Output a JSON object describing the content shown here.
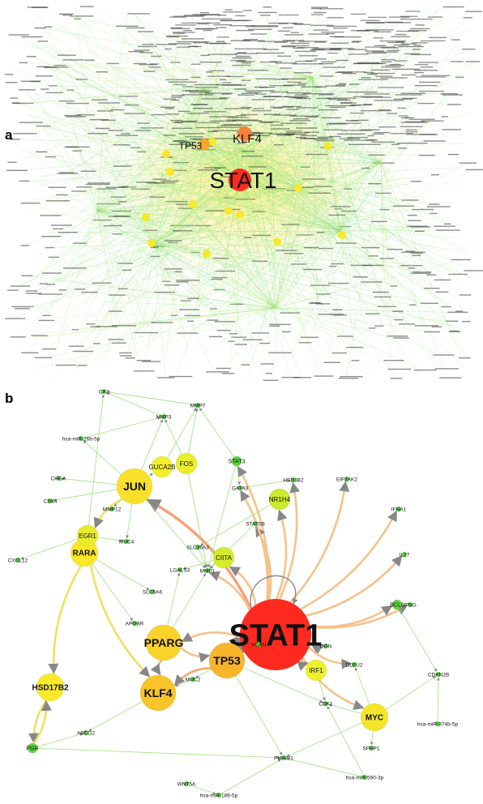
{
  "panel_a": {
    "label": "a",
    "hub_labels": [
      "STAT1",
      "KLF4",
      "TP53"
    ]
  },
  "panel_b": {
    "label": "b",
    "nodes": [
      {
        "id": "STAT1",
        "label": "STAT1",
        "size": "hub",
        "color": "#ff2a1f"
      },
      {
        "id": "TP53",
        "label": "TP53",
        "size": "large",
        "color": "#f7b52c"
      },
      {
        "id": "KLF4",
        "label": "KLF4",
        "size": "large",
        "color": "#f7c42a"
      },
      {
        "id": "PPARG",
        "label": "PPARG",
        "size": "large",
        "color": "#f9d22a"
      },
      {
        "id": "JUN",
        "label": "JUN",
        "size": "large",
        "color": "#f9e02a"
      },
      {
        "id": "RARA",
        "label": "RARA",
        "size": "medium",
        "color": "#fbe629"
      },
      {
        "id": "MYC",
        "label": "MYC",
        "size": "medium",
        "color": "#f3e629"
      },
      {
        "id": "HSD17B2",
        "label": "HSD17B2",
        "size": "medium",
        "color": "#fbea2a"
      },
      {
        "id": "EGR1",
        "label": "EGR1",
        "size": "small",
        "color": "#e9ec2b"
      },
      {
        "id": "FOS",
        "label": "FOS",
        "size": "small",
        "color": "#eaee2c"
      },
      {
        "id": "GUCA2B",
        "label": "GUCA2B",
        "size": "small",
        "color": "#f2ee2c"
      },
      {
        "id": "CIITA",
        "label": "CIITA",
        "size": "small",
        "color": "#d2ec2c"
      },
      {
        "id": "NR1H4",
        "label": "NR1H4",
        "size": "small",
        "color": "#cbea2c"
      },
      {
        "id": "IRF1",
        "label": "IRF1",
        "size": "small",
        "color": "#eef02b"
      },
      {
        "id": "STAT3",
        "label": "STAT3",
        "size": "tiny",
        "color": "#5cd63a"
      },
      {
        "id": "BCL6",
        "label": "BCL6",
        "size": "tiny",
        "color": "#5cd63a"
      },
      {
        "id": "PGR",
        "label": "PGR",
        "size": "tiny",
        "color": "#5cd63a"
      },
      {
        "id": "CA2",
        "label": "CA2",
        "size": "dot",
        "color": "#4cd23a"
      },
      {
        "id": "MMP7",
        "label": "MMP7",
        "size": "dot",
        "color": "#4cd23a"
      },
      {
        "id": "MMP3",
        "label": "MMP3",
        "size": "dot",
        "color": "#4cd23a"
      },
      {
        "id": "hsa-miR-26b-5p",
        "label": "hsa-miR-26b-5p",
        "size": "dot",
        "color": "#4cd23a"
      },
      {
        "id": "CHGA",
        "label": "CHGA",
        "size": "dot",
        "color": "#4cd23a"
      },
      {
        "id": "CD44",
        "label": "CD44",
        "size": "dot",
        "color": "#4cd23a"
      },
      {
        "id": "MMP12",
        "label": "MMP12",
        "size": "dot",
        "color": "#4cd23a"
      },
      {
        "id": "CXCL12",
        "label": "CXCL12",
        "size": "dot",
        "color": "#4cd23a"
      },
      {
        "id": "HSD3B2",
        "label": "HSD3B2",
        "size": "dot",
        "color": "#4cd23a"
      },
      {
        "id": "GATA3",
        "label": "GATA3",
        "size": "dot",
        "color": "#4cd23a"
      },
      {
        "id": "EIF2AK2",
        "label": "EIF2AK2",
        "size": "dot",
        "color": "#4cd23a"
      },
      {
        "id": "IFNA1",
        "label": "IFNA1",
        "size": "dot",
        "color": "#4cd23a"
      },
      {
        "id": "IL27",
        "label": "IL27",
        "size": "dot",
        "color": "#4cd23a"
      },
      {
        "id": "IFNG",
        "label": "IFNG",
        "size": "dot",
        "color": "#4cd23a"
      },
      {
        "id": "STAT5B",
        "label": "STAT5B",
        "size": "dot",
        "color": "#4cd23a"
      },
      {
        "id": "SLC26A3",
        "label": "SLC26A3",
        "size": "dot",
        "color": "#4cd23a"
      },
      {
        "id": "MUC4",
        "label": "MUC4",
        "size": "dot",
        "color": "#4cd23a"
      },
      {
        "id": "MMP1",
        "label": "MMP1",
        "size": "dot",
        "color": "#4cd23a"
      },
      {
        "id": "LGALS3",
        "label": "LGALS3",
        "size": "dot",
        "color": "#4cd23a"
      },
      {
        "id": "SLC5A6",
        "label": "SLC5A6",
        "size": "dot",
        "color": "#4cd23a"
      },
      {
        "id": "APOBR",
        "label": "APOBR",
        "size": "dot",
        "color": "#4cd23a"
      },
      {
        "id": "VCAN",
        "label": "VCAN",
        "size": "dot",
        "color": "#4cd23a"
      },
      {
        "id": "MUC2",
        "label": "MUC2",
        "size": "dot",
        "color": "#4cd23a"
      },
      {
        "id": "OGN",
        "label": "OGN",
        "size": "dot",
        "color": "#4cd23a"
      },
      {
        "id": "DLEU2",
        "label": "DLEU2",
        "size": "dot",
        "color": "#4cd23a"
      },
      {
        "id": "CDK1",
        "label": "CDK1",
        "size": "dot",
        "color": "#4cd23a"
      },
      {
        "id": "CDKN2B",
        "label": "CDKN2B",
        "size": "dot",
        "color": "#4cd23a"
      },
      {
        "id": "SFRP1",
        "label": "SFRP1",
        "size": "dot",
        "color": "#4cd23a"
      },
      {
        "id": "ABCG2",
        "label": "ABCG2",
        "size": "dot",
        "color": "#4cd23a"
      },
      {
        "id": "PMAIP1",
        "label": "PMAIP1",
        "size": "dot",
        "color": "#4cd23a"
      },
      {
        "id": "hsa-miR-374b-5p",
        "label": "hsa-miR-374b-5p",
        "size": "dot",
        "color": "#4cd23a"
      },
      {
        "id": "hsa-miR-590-3p",
        "label": "hsa-miR-590-3p",
        "size": "dot",
        "color": "#4cd23a"
      },
      {
        "id": "hsa-miR-186-5p",
        "label": "hsa-miR-186-5p",
        "size": "dot",
        "color": "#4cd23a"
      },
      {
        "id": "WNT5A",
        "label": "WNT5A",
        "size": "dot",
        "color": "#4cd23a"
      }
    ],
    "edges": [
      {
        "from": "STAT1",
        "to": "TP53",
        "color": "#f08a80"
      },
      {
        "from": "STAT1",
        "to": "JUN",
        "color": "#f5a27a"
      },
      {
        "from": "STAT1",
        "to": "PPARG",
        "color": "#f6c28a"
      },
      {
        "from": "STAT1",
        "to": "IFNA1",
        "color": "#f6c28a"
      },
      {
        "from": "STAT1",
        "to": "EIF2AK2",
        "color": "#f6c28a"
      },
      {
        "from": "STAT1",
        "to": "IL27",
        "color": "#f6c28a"
      },
      {
        "from": "STAT1",
        "to": "IFNG",
        "color": "#f6c28a"
      },
      {
        "from": "STAT1",
        "to": "BCL6",
        "color": "#f6c28a"
      },
      {
        "from": "STAT1",
        "to": "MYC",
        "color": "#f6c28a"
      },
      {
        "from": "STAT1",
        "to": "IRF1",
        "color": "#f6c28a"
      },
      {
        "from": "STAT1",
        "to": "OGN",
        "color": "#f6c28a"
      },
      {
        "from": "STAT1",
        "to": "DLEU2",
        "color": "#f6c28a"
      },
      {
        "from": "STAT1",
        "to": "CIITA",
        "color": "#f6c28a"
      },
      {
        "from": "STAT1",
        "to": "NR1H4",
        "color": "#f6c28a"
      },
      {
        "from": "STAT1",
        "to": "STAT3",
        "color": "#f6c28a"
      },
      {
        "from": "STAT1",
        "to": "STAT5B",
        "color": "#f6c28a"
      },
      {
        "from": "STAT1",
        "to": "VCAN",
        "color": "#f6c28a"
      },
      {
        "from": "STAT1",
        "to": "MMP1",
        "color": "#f6c28a"
      },
      {
        "from": "STAT1",
        "to": "GATA3",
        "color": "#f6c28a"
      },
      {
        "from": "STAT1",
        "to": "HSD3B2",
        "color": "#f6c28a"
      },
      {
        "from": "TP53",
        "to": "KLF4",
        "color": "#f6a866"
      },
      {
        "from": "PPARG",
        "to": "KLF4",
        "color": "#f6b873"
      },
      {
        "from": "PPARG",
        "to": "TP53",
        "color": "#f6c28a"
      },
      {
        "from": "JUN",
        "to": "EGR1",
        "color": "#f0e060"
      },
      {
        "from": "JUN",
        "to": "MMP12",
        "color": "#9ee27a"
      },
      {
        "from": "JUN",
        "to": "GUCA2B",
        "color": "#9ee27a"
      },
      {
        "from": "JUN",
        "to": "MMP3",
        "color": "#9ee27a"
      },
      {
        "from": "JUN",
        "to": "CHGA",
        "color": "#9ee27a"
      },
      {
        "from": "JUN",
        "to": "CD44",
        "color": "#9ee27a"
      },
      {
        "from": "JUN",
        "to": "MUC4",
        "color": "#9ee27a"
      },
      {
        "from": "JUN",
        "to": "MMP1",
        "color": "#9ee27a"
      },
      {
        "from": "JUN",
        "to": "hsa-miR-26b-5p",
        "color": "#9ee27a"
      },
      {
        "from": "FOS",
        "to": "MMP7",
        "color": "#9ee27a"
      },
      {
        "from": "FOS",
        "to": "MMP3",
        "color": "#9ee27a"
      },
      {
        "from": "FOS",
        "to": "MMP1",
        "color": "#9ee27a"
      },
      {
        "from": "GUCA2B",
        "to": "MMP7",
        "color": "#9ee27a"
      },
      {
        "from": "STAT3",
        "to": "MMP7",
        "color": "#9ee27a"
      },
      {
        "from": "STAT3",
        "to": "GATA3",
        "color": "#9ee27a"
      },
      {
        "from": "STAT3",
        "to": "MMP1",
        "color": "#9ee27a"
      },
      {
        "from": "EGR1",
        "to": "CXCL12",
        "color": "#9ee27a"
      },
      {
        "from": "EGR1",
        "to": "MUC4",
        "color": "#9ee27a"
      },
      {
        "from": "EGR1",
        "to": "CA2",
        "color": "#9ee27a"
      },
      {
        "from": "CIITA",
        "to": "MMP1",
        "color": "#9ee27a"
      },
      {
        "from": "CIITA",
        "to": "LGALS3",
        "color": "#9ee27a"
      },
      {
        "from": "NR1H4",
        "to": "SLC26A3",
        "color": "#9ee27a"
      },
      {
        "from": "RARA",
        "to": "HSD17B2",
        "color": "#f0e060"
      },
      {
        "from": "RARA",
        "to": "KLF4",
        "color": "#f0e060"
      },
      {
        "from": "RARA",
        "to": "SLC5A6",
        "color": "#9ee27a"
      },
      {
        "from": "RARA",
        "to": "APOBR",
        "color": "#9ee27a"
      },
      {
        "from": "HSD17B2",
        "to": "PGR",
        "color": "#f0e060"
      },
      {
        "from": "PGR",
        "to": "HSD17B2",
        "color": "#f0e060"
      },
      {
        "from": "PGR",
        "to": "ABCG2",
        "color": "#9ee27a"
      },
      {
        "from": "KLF4",
        "to": "ABCG2",
        "color": "#9ee27a"
      },
      {
        "from": "TP53",
        "to": "MUC2",
        "color": "#9ee27a"
      },
      {
        "from": "TP53",
        "to": "PMAIP1",
        "color": "#9ee27a"
      },
      {
        "from": "TP53",
        "to": "CDK1",
        "color": "#9ee27a"
      },
      {
        "from": "PPARG",
        "to": "MMP1",
        "color": "#9ee27a"
      },
      {
        "from": "PPARG",
        "to": "LGALS3",
        "color": "#9ee27a"
      },
      {
        "from": "MYC",
        "to": "CDK1",
        "color": "#9ee27a"
      },
      {
        "from": "MYC",
        "to": "SFRP1",
        "color": "#9ee27a"
      },
      {
        "from": "MYC",
        "to": "CDKN2B",
        "color": "#9ee27a"
      },
      {
        "from": "MYC",
        "to": "DLEU2",
        "color": "#9ee27a"
      },
      {
        "from": "MYC",
        "to": "PMAIP1",
        "color": "#9ee27a"
      },
      {
        "from": "IRF1",
        "to": "CDK1",
        "color": "#9ee27a"
      },
      {
        "from": "BCL6",
        "to": "CDKN2B",
        "color": "#9ee27a"
      },
      {
        "from": "hsa-miR-374b-5p",
        "to": "CDKN2B",
        "color": "#9ee27a"
      },
      {
        "from": "hsa-miR-590-3p",
        "to": "PMAIP1",
        "color": "#9ee27a"
      },
      {
        "from": "hsa-miR-590-3p",
        "to": "CDK1",
        "color": "#9ee27a"
      },
      {
        "from": "hsa-miR-186-5p",
        "to": "PMAIP1",
        "color": "#9ee27a"
      },
      {
        "from": "WNT5A",
        "to": "hsa-miR-186-5p",
        "color": "#9ee27a"
      },
      {
        "from": "PGR",
        "to": "PMAIP1",
        "color": "#9ee27a"
      },
      {
        "from": "hsa-miR-26b-5p",
        "to": "MMP3",
        "color": "#9ee27a"
      },
      {
        "from": "MMP3",
        "to": "CA2",
        "color": "#9ee27a"
      },
      {
        "from": "MMP7",
        "to": "CA2",
        "color": "#9ee27a"
      },
      {
        "from": "STAT5B",
        "to": "MMP1",
        "color": "#9ee27a"
      },
      {
        "from": "GATA3",
        "to": "HSD3B2",
        "color": "#9ee27a"
      },
      {
        "from": "SLC26A3",
        "to": "MMP1",
        "color": "#9ee27a"
      },
      {
        "from": "MUC2",
        "to": "KLF4",
        "color": "#9ee27a"
      }
    ],
    "self_loop": "STAT1"
  }
}
